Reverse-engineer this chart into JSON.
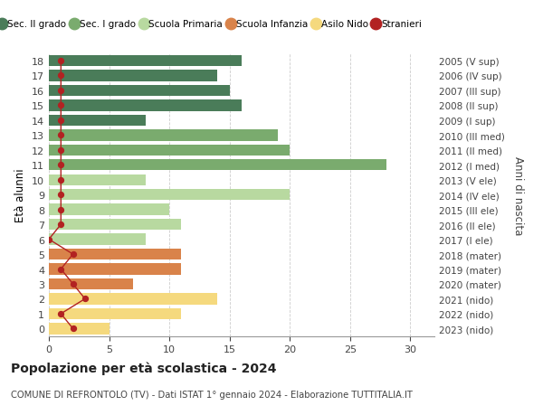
{
  "ages": [
    18,
    17,
    16,
    15,
    14,
    13,
    12,
    11,
    10,
    9,
    8,
    7,
    6,
    5,
    4,
    3,
    2,
    1,
    0
  ],
  "right_labels": [
    "2005 (V sup)",
    "2006 (IV sup)",
    "2007 (III sup)",
    "2008 (II sup)",
    "2009 (I sup)",
    "2010 (III med)",
    "2011 (II med)",
    "2012 (I med)",
    "2013 (V ele)",
    "2014 (IV ele)",
    "2015 (III ele)",
    "2016 (II ele)",
    "2017 (I ele)",
    "2018 (mater)",
    "2019 (mater)",
    "2020 (mater)",
    "2021 (nido)",
    "2022 (nido)",
    "2023 (nido)"
  ],
  "bar_values": [
    16,
    14,
    15,
    16,
    8,
    19,
    20,
    28,
    8,
    20,
    10,
    11,
    8,
    11,
    11,
    7,
    14,
    11,
    5
  ],
  "bar_colors": [
    "#4a7c59",
    "#4a7c59",
    "#4a7c59",
    "#4a7c59",
    "#4a7c59",
    "#7aab6e",
    "#7aab6e",
    "#7aab6e",
    "#b8d9a0",
    "#b8d9a0",
    "#b8d9a0",
    "#b8d9a0",
    "#b8d9a0",
    "#d9834a",
    "#d9834a",
    "#d9834a",
    "#f5d97e",
    "#f5d97e",
    "#f5d97e"
  ],
  "stranieri_values": [
    1,
    1,
    1,
    1,
    1,
    1,
    1,
    1,
    1,
    1,
    1,
    1,
    0,
    2,
    1,
    2,
    3,
    1,
    2
  ],
  "legend_labels": [
    "Sec. II grado",
    "Sec. I grado",
    "Scuola Primaria",
    "Scuola Infanzia",
    "Asilo Nido",
    "Stranieri"
  ],
  "legend_colors": [
    "#4a7c59",
    "#7aab6e",
    "#b8d9a0",
    "#d9834a",
    "#f5d97e",
    "#b22222"
  ],
  "ylabel_left": "Età alunni",
  "ylabel_right": "Anni di nascita",
  "xlim": [
    0,
    32
  ],
  "xticks": [
    0,
    5,
    10,
    15,
    20,
    25,
    30
  ],
  "title": "Popolazione per età scolastica - 2024",
  "subtitle": "COMUNE DI REFRONTOLO (TV) - Dati ISTAT 1° gennaio 2024 - Elaborazione TUTTITALIA.IT",
  "bg_color": "#ffffff",
  "bar_height": 0.75,
  "grid_color": "#cccccc"
}
